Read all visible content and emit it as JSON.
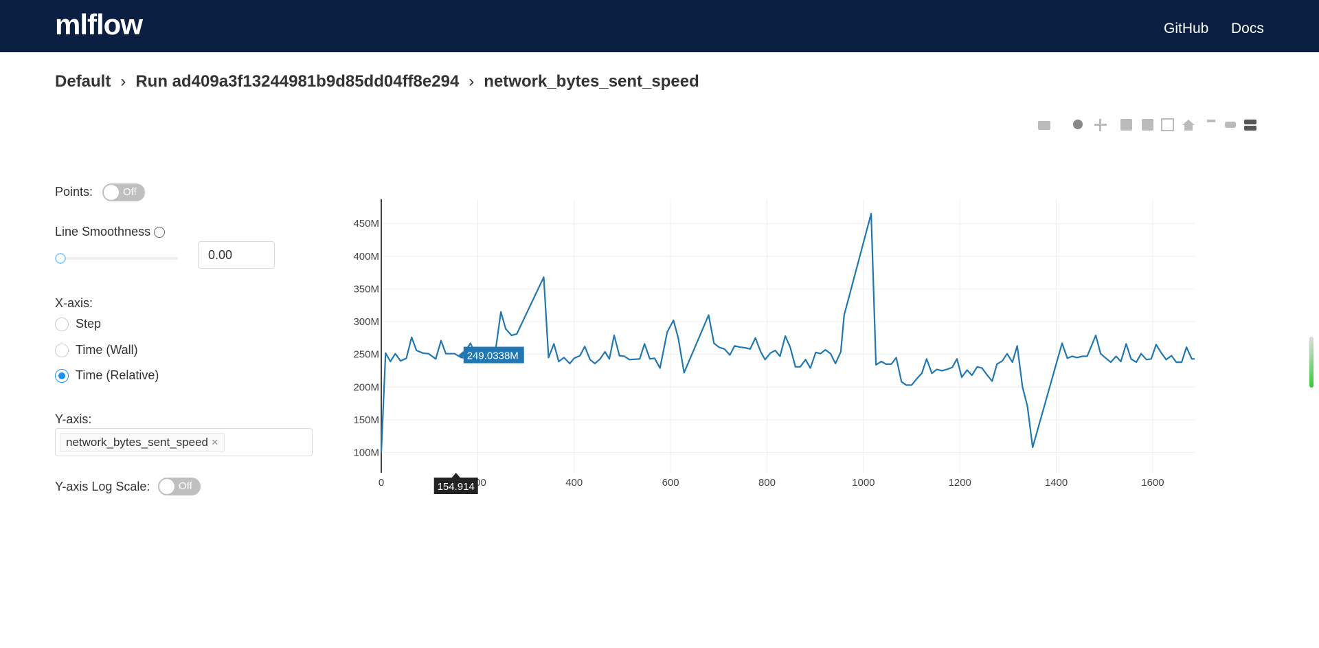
{
  "header": {
    "logo": "mlflow",
    "links": [
      "GitHub",
      "Docs"
    ]
  },
  "breadcrumb": [
    "Default",
    "Run ad409a3f13244981b9d85dd04ff8e294",
    "network_bytes_sent_speed"
  ],
  "controls": {
    "points": {
      "label": "Points:",
      "state": "Off"
    },
    "smoothness": {
      "label": "Line Smoothness",
      "value": "0.00"
    },
    "x_axis": {
      "label": "X-axis:",
      "options": [
        "Step",
        "Time (Wall)",
        "Time (Relative)"
      ],
      "selected": 2
    },
    "y_axis": {
      "label": "Y-axis:",
      "tags": [
        "network_bytes_sent_speed"
      ]
    },
    "log_scale": {
      "label": "Y-axis Log Scale:",
      "state": "Off"
    }
  },
  "chart_data": {
    "type": "line",
    "color": "#1f77b4",
    "grid": true,
    "log_scale": false,
    "x": [
      0,
      9,
      19,
      29,
      40,
      52,
      63,
      73,
      86,
      98,
      113,
      124,
      134,
      152,
      166,
      185,
      196,
      213,
      237,
      248,
      258,
      270,
      281,
      337,
      347,
      358,
      368,
      379,
      391,
      400,
      412,
      422,
      433,
      443,
      454,
      464,
      473,
      483,
      494,
      504,
      515,
      536,
      546,
      557,
      567,
      578,
      593,
      606,
      616,
      628,
      679,
      690,
      700,
      712,
      723,
      733,
      744,
      755,
      765,
      776,
      787,
      796,
      807,
      817,
      827,
      838,
      848,
      859,
      869,
      880,
      890,
      901,
      911,
      921,
      932,
      942,
      953,
      960,
      1016,
      1026,
      1037,
      1047,
      1058,
      1068,
      1079,
      1089,
      1100,
      1110,
      1121,
      1131,
      1142,
      1152,
      1163,
      1173,
      1184,
      1194,
      1204,
      1215,
      1225,
      1236,
      1246,
      1257,
      1267,
      1277,
      1288,
      1298,
      1309,
      1319,
      1330,
      1340,
      1351,
      1412,
      1423,
      1433,
      1443,
      1454,
      1464,
      1482,
      1492,
      1503,
      1513,
      1524,
      1534,
      1545,
      1555,
      1566,
      1576,
      1587,
      1597,
      1607,
      1618,
      1628,
      1639,
      1649,
      1660,
      1670,
      1681,
      1687
    ],
    "values": [
      100000000.0,
      252000000.0,
      239000000.0,
      251000000.0,
      240000000.0,
      244000000.0,
      276000000.0,
      256000000.0,
      252000000.0,
      251000000.0,
      243000000.0,
      271000000.0,
      251000000.0,
      251000000.0,
      245000000.0,
      267000000.0,
      248000000.0,
      248000000.0,
      256000000.0,
      315000000.0,
      289000000.0,
      279000000.0,
      281000000.0,
      368000000.0,
      245000000.0,
      266000000.0,
      239000000.0,
      245000000.0,
      236000000.0,
      244000000.0,
      248000000.0,
      262000000.0,
      242000000.0,
      236000000.0,
      243000000.0,
      254000000.0,
      243000000.0,
      279000000.0,
      248000000.0,
      247000000.0,
      242000000.0,
      243000000.0,
      266000000.0,
      243000000.0,
      244000000.0,
      229000000.0,
      284000000.0,
      302000000.0,
      275000000.0,
      222000000.0,
      310000000.0,
      267000000.0,
      261000000.0,
      258000000.0,
      249000000.0,
      263000000.0,
      261000000.0,
      260000000.0,
      258000000.0,
      275000000.0,
      254000000.0,
      242000000.0,
      252000000.0,
      256000000.0,
      247000000.0,
      278000000.0,
      261000000.0,
      231000000.0,
      231000000.0,
      242000000.0,
      229000000.0,
      253000000.0,
      251000000.0,
      257000000.0,
      251000000.0,
      236000000.0,
      254000000.0,
      310000000.0,
      465000000.0,
      234000000.0,
      239000000.0,
      235000000.0,
      235000000.0,
      245000000.0,
      208000000.0,
      203000000.0,
      203000000.0,
      212000000.0,
      221000000.0,
      243000000.0,
      221000000.0,
      227000000.0,
      225000000.0,
      227000000.0,
      230000000.0,
      243000000.0,
      215000000.0,
      226000000.0,
      218000000.0,
      231000000.0,
      229000000.0,
      218000000.0,
      209000000.0,
      235000000.0,
      240000000.0,
      251000000.0,
      238000000.0,
      263000000.0,
      200000000.0,
      171000000.0,
      108000000.0,
      267000000.0,
      244000000.0,
      247000000.0,
      245000000.0,
      247000000.0,
      247000000.0,
      279000000.0,
      251000000.0,
      244000000.0,
      238000000.0,
      247000000.0,
      239000000.0,
      266000000.0,
      243000000.0,
      238000000.0,
      251000000.0,
      242000000.0,
      243000000.0,
      265000000.0,
      252000000.0,
      242000000.0,
      248000000.0,
      238000000.0,
      238000000.0,
      261000000.0,
      243000000.0,
      243000000.0
    ],
    "xlim": [
      0,
      1687
    ],
    "xticks": [
      0,
      200,
      400,
      600,
      800,
      1000,
      1200,
      1400,
      1600
    ],
    "ylim": [
      69000000.0,
      487000000.0
    ],
    "yticks": [
      {
        "value": 100000000.0,
        "label": "100M"
      },
      {
        "value": 150000000.0,
        "label": "150M"
      },
      {
        "value": 200000000.0,
        "label": "200M"
      },
      {
        "value": 250000000.0,
        "label": "250M"
      },
      {
        "value": 300000000.0,
        "label": "300M"
      },
      {
        "value": 350000000.0,
        "label": "350M"
      },
      {
        "value": 400000000.0,
        "label": "400M"
      },
      {
        "value": 450000000.0,
        "label": "450M"
      }
    ],
    "hover": {
      "x": 154.914,
      "y": {
        "value": 249033800,
        "label": "249.0338M"
      }
    }
  }
}
